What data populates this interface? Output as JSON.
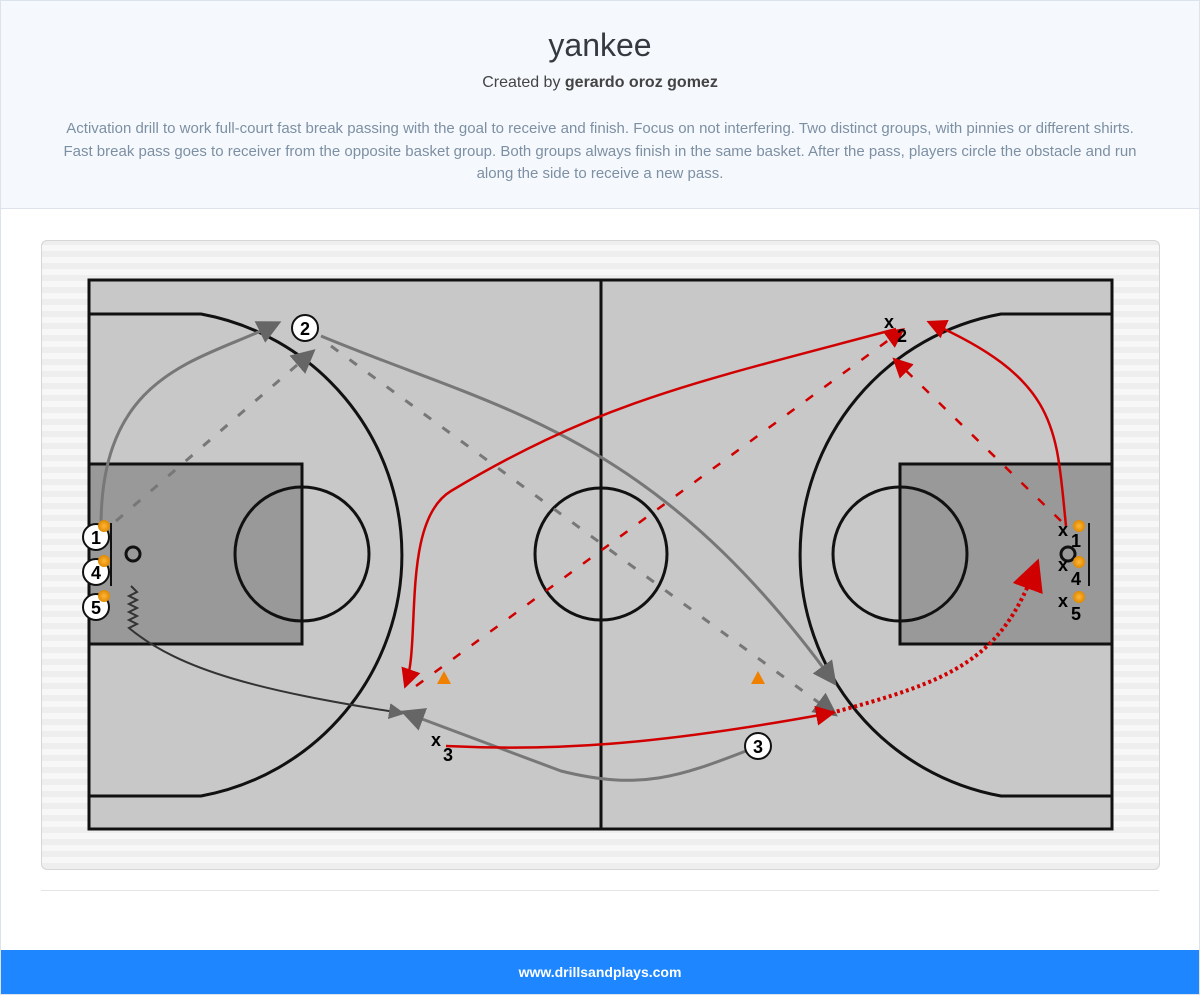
{
  "header": {
    "title": "yankee",
    "created_by_prefix": "Created by",
    "author": "gerardo oroz gomez",
    "description": "Activation drill to work full-court fast break passing with the goal to receive and finish. Focus on not interfering. Two distinct groups, with pinnies or different shirts. Fast break pass goes to receiver from the opposite basket group. Both groups always finish in the same basket. After the pass, players circle the obstacle and run along the side to receive a new pass."
  },
  "diagram": {
    "offense": [
      {
        "label": "1"
      },
      {
        "label": "4"
      },
      {
        "label": "5"
      },
      {
        "label": "2"
      },
      {
        "label": "3"
      }
    ],
    "defense": [
      {
        "label": "1"
      },
      {
        "label": "4"
      },
      {
        "label": "5"
      },
      {
        "label": "2"
      },
      {
        "label": "3"
      }
    ],
    "defense_mark": "x",
    "colors": {
      "offense_paths": "#777777",
      "defense_paths": "#d10000",
      "court_paint": "#999999"
    }
  },
  "footer": {
    "site": "www.drillsandplays.com"
  }
}
